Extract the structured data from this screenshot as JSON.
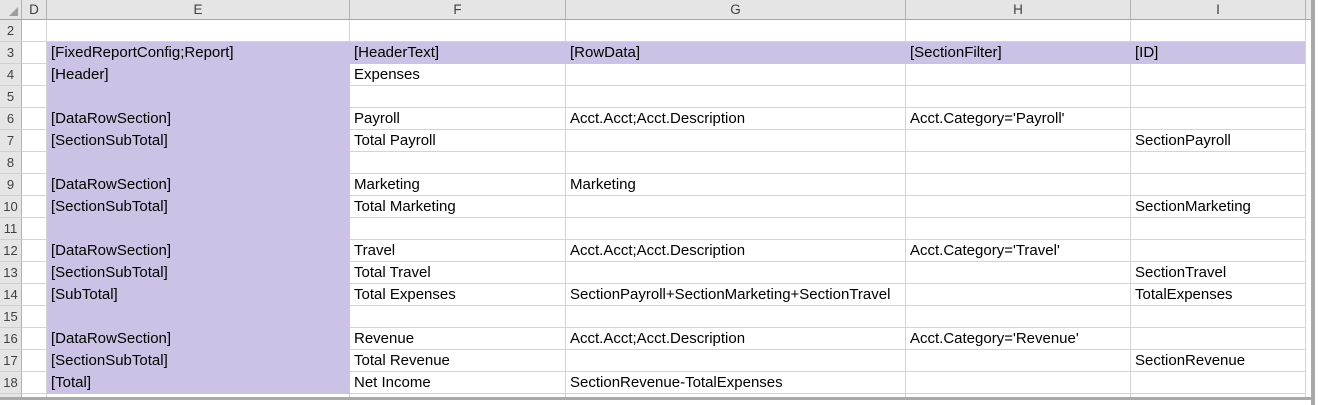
{
  "app": {
    "name": "spreadsheet-grid"
  },
  "colors": {
    "header_bg": "#E5E5E5",
    "header_text": "#404040",
    "header_separator": "#B2B2B2",
    "header_edge": "#A6A6A6",
    "gridline": "#D4D4D4",
    "cell_text": "#000000",
    "highlight_fill": "#CBC2E5",
    "window_edge": "#A9A9A9"
  },
  "grid": {
    "column_headers": [
      "D",
      "E",
      "F",
      "G",
      "H",
      "I"
    ],
    "highlight_ranges": [
      "E3:E18",
      "F3:I3"
    ],
    "rows": [
      {
        "n": 2,
        "cells": {}
      },
      {
        "n": 3,
        "cells": {
          "E": "[FixedReportConfig;Report]",
          "F": "[HeaderText]",
          "G": "[RowData]",
          "H": "[SectionFilter]",
          "I": "[ID]"
        }
      },
      {
        "n": 4,
        "cells": {
          "E": "[Header]",
          "F": "Expenses"
        }
      },
      {
        "n": 5,
        "cells": {}
      },
      {
        "n": 6,
        "cells": {
          "E": "[DataRowSection]",
          "F": "Payroll",
          "G": "Acct.Acct;Acct.Description",
          "H": "Acct.Category='Payroll'"
        }
      },
      {
        "n": 7,
        "cells": {
          "E": "[SectionSubTotal]",
          "F": "Total Payroll",
          "I": "SectionPayroll"
        }
      },
      {
        "n": 8,
        "cells": {}
      },
      {
        "n": 9,
        "cells": {
          "E": "[DataRowSection]",
          "F": "Marketing",
          "G": "Marketing"
        }
      },
      {
        "n": 10,
        "cells": {
          "E": "[SectionSubTotal]",
          "F": "Total Marketing",
          "I": "SectionMarketing"
        }
      },
      {
        "n": 11,
        "cells": {}
      },
      {
        "n": 12,
        "cells": {
          "E": "[DataRowSection]",
          "F": "Travel",
          "G": "Acct.Acct;Acct.Description",
          "H": "Acct.Category='Travel'"
        }
      },
      {
        "n": 13,
        "cells": {
          "E": "[SectionSubTotal]",
          "F": "Total Travel",
          "I": "SectionTravel"
        }
      },
      {
        "n": 14,
        "cells": {
          "E": "[SubTotal]",
          "F": "Total Expenses",
          "G": "SectionPayroll+SectionMarketing+SectionTravel",
          "I": "TotalExpenses"
        }
      },
      {
        "n": 15,
        "cells": {}
      },
      {
        "n": 16,
        "cells": {
          "E": "[DataRowSection]",
          "F": "Revenue",
          "G": "Acct.Acct;Acct.Description",
          "H": "Acct.Category='Revenue'"
        }
      },
      {
        "n": 17,
        "cells": {
          "E": "[SectionSubTotal]",
          "F": "Total Revenue",
          "I": "SectionRevenue"
        }
      },
      {
        "n": 18,
        "cells": {
          "E": "[Total]",
          "F": "Net Income",
          "G": "SectionRevenue-TotalExpenses"
        }
      }
    ]
  }
}
